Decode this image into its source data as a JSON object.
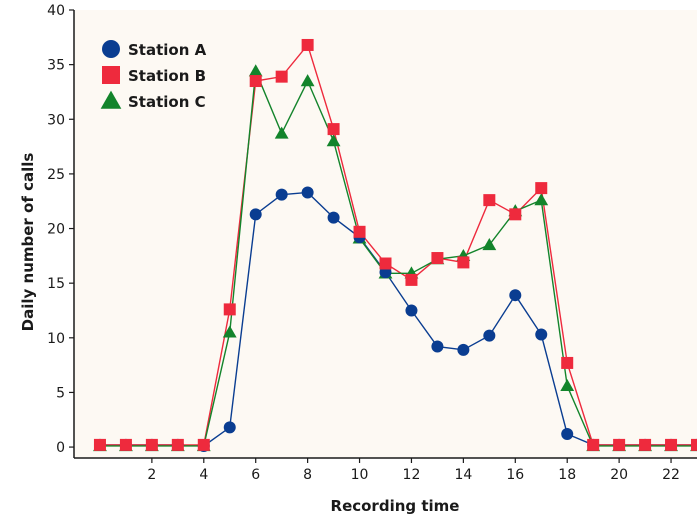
{
  "chart_data": {
    "type": "line",
    "title": "",
    "xlabel": "Recording time",
    "ylabel": "Daily number of calls",
    "xlim": [
      -1,
      23
    ],
    "ylim": [
      -1,
      40
    ],
    "xticks": [
      2,
      4,
      6,
      8,
      10,
      12,
      14,
      16,
      18,
      20,
      22
    ],
    "yticks": [
      0,
      5,
      10,
      15,
      20,
      25,
      30,
      35,
      40
    ],
    "grid": false,
    "legend_position": "top-left",
    "x": [
      0,
      1,
      2,
      3,
      4,
      5,
      6,
      7,
      8,
      9,
      10,
      11,
      12,
      13,
      14,
      15,
      16,
      17,
      18,
      19,
      20,
      21,
      22,
      23
    ],
    "series": [
      {
        "name": "Station A",
        "marker": "circle",
        "color": "#0a3d91",
        "values": [
          0.2,
          0.2,
          0.2,
          0.2,
          0.1,
          1.8,
          21.3,
          23.1,
          23.3,
          21.0,
          19.2,
          16.0,
          12.5,
          9.2,
          8.9,
          10.2,
          13.9,
          10.3,
          1.2,
          0.2,
          0.2,
          0.2,
          0.2,
          0.2
        ]
      },
      {
        "name": "Station B",
        "marker": "square",
        "color": "#ee2a3d",
        "values": [
          0.2,
          0.2,
          0.2,
          0.2,
          0.2,
          12.6,
          33.5,
          33.9,
          36.8,
          29.1,
          19.7,
          16.8,
          15.3,
          17.3,
          16.9,
          22.6,
          21.3,
          23.7,
          7.7,
          0.2,
          0.2,
          0.2,
          0.2,
          0.2
        ]
      },
      {
        "name": "Station C",
        "marker": "triangle",
        "color": "#13842b",
        "values": [
          0.1,
          0.1,
          0.1,
          0.1,
          0.1,
          10.5,
          34.4,
          28.7,
          33.5,
          28.0,
          19.1,
          15.9,
          15.9,
          17.2,
          17.5,
          18.5,
          21.6,
          22.6,
          5.6,
          0.1,
          0.1,
          0.1,
          0.1,
          0.1
        ]
      }
    ]
  }
}
